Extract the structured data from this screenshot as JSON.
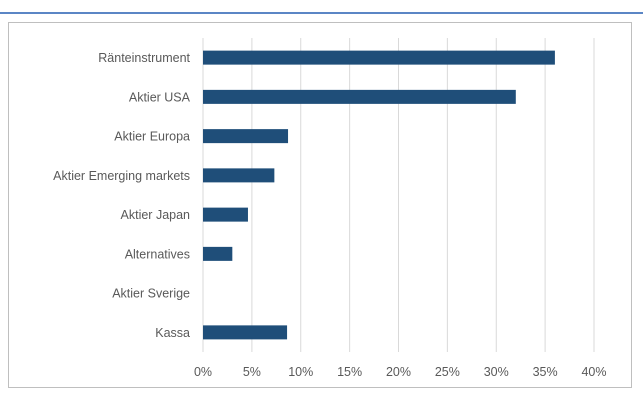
{
  "chart_data": {
    "type": "bar",
    "orientation": "horizontal",
    "categories": [
      "Ränteinstrument",
      "Aktier USA",
      "Aktier Europa",
      "Aktier Emerging markets",
      "Aktier Japan",
      "Alternatives",
      "Aktier Sverige",
      "Kassa"
    ],
    "values": [
      36,
      32,
      8.7,
      7.3,
      4.6,
      3.0,
      0,
      8.6
    ],
    "xlim": [
      0,
      40
    ],
    "xticks": [
      0,
      5,
      10,
      15,
      20,
      25,
      30,
      35,
      40
    ],
    "tick_labels": [
      "0%",
      "5%",
      "10%",
      "15%",
      "20%",
      "25%",
      "30%",
      "35%",
      "40%"
    ],
    "grid": "vertical",
    "bar_color": "#1f4e79",
    "title": "",
    "xlabel": "",
    "ylabel": ""
  }
}
